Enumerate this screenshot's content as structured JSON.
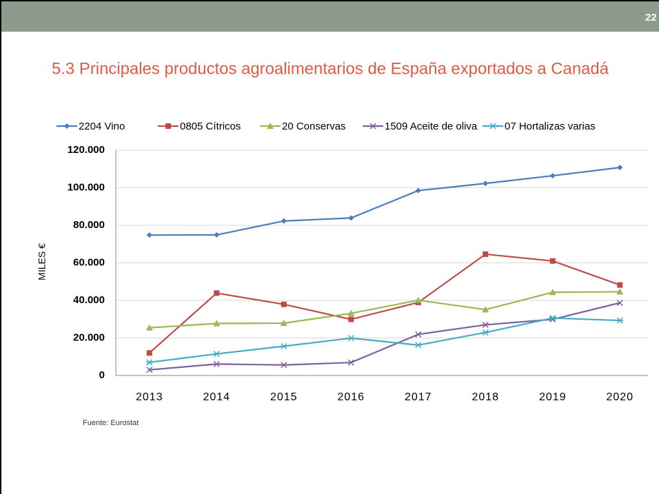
{
  "slide_number": "22",
  "chart_data": {
    "type": "line",
    "title": "5.3 Principales productos agroalimentarios de España exportados a Canadá",
    "y_label": "MILES €",
    "source": "Fuente: Eurostat",
    "categories": [
      "2013",
      "2014",
      "2015",
      "2016",
      "2017",
      "2018",
      "2019",
      "2020"
    ],
    "ylim": [
      0,
      120000
    ],
    "yticks": [
      0,
      {
        "value": 20000,
        "label": "20.000"
      },
      {
        "value": 40000,
        "label": "40.000"
      },
      {
        "value": 60000,
        "label": "60.000"
      },
      {
        "value": 80000,
        "label": "80.000"
      },
      {
        "value": 100000,
        "label": "100.000"
      },
      {
        "value": 120000,
        "label": "120.000"
      }
    ],
    "grid": true,
    "legend": "top",
    "series": [
      {
        "name": "2204 Vino",
        "color": "#4a7ebb",
        "marker": "diamond",
        "values": [
          74800,
          74900,
          82300,
          83900,
          98500,
          102300,
          106400,
          110800
        ]
      },
      {
        "name": "0805 Cítricos",
        "color": "#be4b48",
        "marker": "square",
        "values": [
          12000,
          43900,
          37900,
          29900,
          38900,
          64600,
          61000,
          48200
        ]
      },
      {
        "name": "20 Conservas",
        "color": "#98b954",
        "marker": "triangle",
        "values": [
          25400,
          27700,
          27900,
          33100,
          40100,
          35100,
          44300,
          44600
        ]
      },
      {
        "name": "1509 Aceite de oliva",
        "color": "#7d60a0",
        "marker": "x",
        "values": [
          3000,
          6100,
          5600,
          6900,
          21900,
          27000,
          29900,
          38700
        ]
      },
      {
        "name": "07 Hortalizas varias",
        "color": "#46aac5",
        "marker": "star",
        "values": [
          7000,
          11500,
          15600,
          19900,
          16200,
          22900,
          30600,
          29300
        ]
      }
    ]
  }
}
